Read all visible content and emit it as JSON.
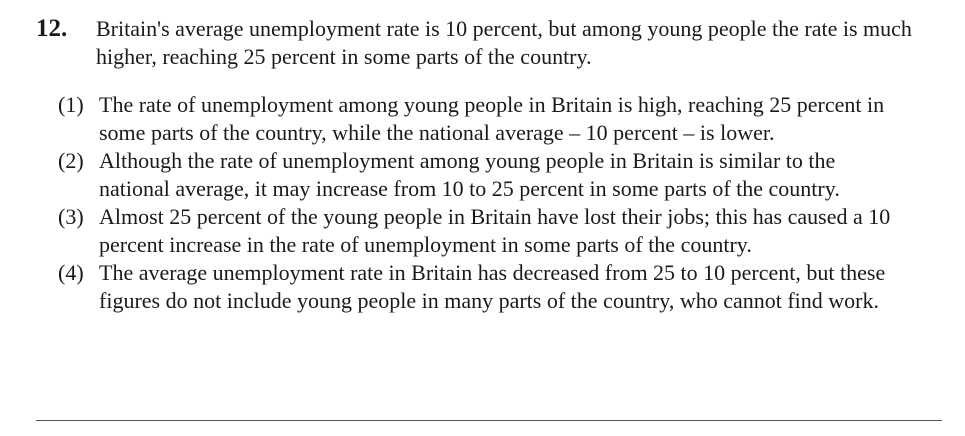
{
  "question": {
    "number": "12.",
    "stem": "Britain's average unemployment rate is 10 percent, but among young people the rate is much higher, reaching 25 percent in some parts of the country.",
    "options": [
      {
        "label": "(1)",
        "text": "The rate of unemployment among young people in Britain is high, reaching 25 percent in some parts of the country, while the national average – 10 percent – is lower."
      },
      {
        "label": "(2)",
        "text": "Although the rate of unemployment among young people in Britain is similar to the national average, it may increase from 10 to 25 percent in some parts of the country."
      },
      {
        "label": "(3)",
        "text": "Almost 25 percent of the young people in Britain have lost their jobs; this has caused a 10 percent increase in the rate of unemployment in some parts of the country."
      },
      {
        "label": "(4)",
        "text": "The average unemployment rate in Britain has decreased from 25 to 10 percent, but these figures do not include young people in many parts of the country, who cannot find work."
      }
    ]
  }
}
